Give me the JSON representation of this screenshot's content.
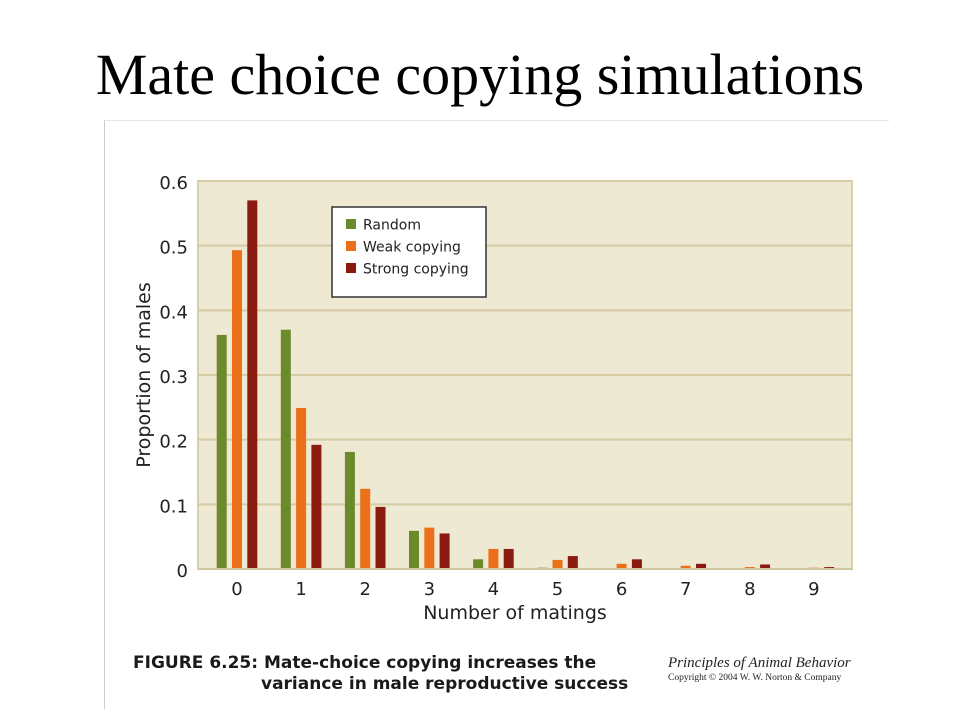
{
  "slide": {
    "title": "Mate choice copying simulations"
  },
  "figure": {
    "caption_line1": "FIGURE 6.25: Mate-choice copying increases the",
    "caption_line2": "variance in male reproductive success",
    "book_title": "Principles of Animal Behavior",
    "copyright": "Copyright © 2004 W. W. Norton & Company"
  },
  "chart_data": {
    "type": "bar",
    "title": "",
    "xlabel": "Number of matings",
    "ylabel": "Proportion of males",
    "categories": [
      "0",
      "1",
      "2",
      "3",
      "4",
      "5",
      "6",
      "7",
      "8",
      "9"
    ],
    "yticks": [
      "0",
      "0.1",
      "0.2",
      "0.3",
      "0.4",
      "0.5",
      "0.6"
    ],
    "ylim": [
      0,
      0.6
    ],
    "grid": true,
    "legend_position": "top-left",
    "plot_background": "#ede9d3",
    "series": [
      {
        "name": "Random",
        "color": "#6b8a2c",
        "values": [
          0.362,
          0.37,
          0.181,
          0.059,
          0.015,
          0.002,
          0.001,
          0.001,
          0.001,
          0.001
        ]
      },
      {
        "name": "Weak copying",
        "color": "#ec6f1a",
        "values": [
          0.493,
          0.249,
          0.124,
          0.064,
          0.031,
          0.014,
          0.008,
          0.005,
          0.003,
          0.002
        ]
      },
      {
        "name": "Strong copying",
        "color": "#8b1a10",
        "values": [
          0.57,
          0.192,
          0.096,
          0.055,
          0.031,
          0.02,
          0.015,
          0.008,
          0.007,
          0.003
        ]
      }
    ]
  }
}
